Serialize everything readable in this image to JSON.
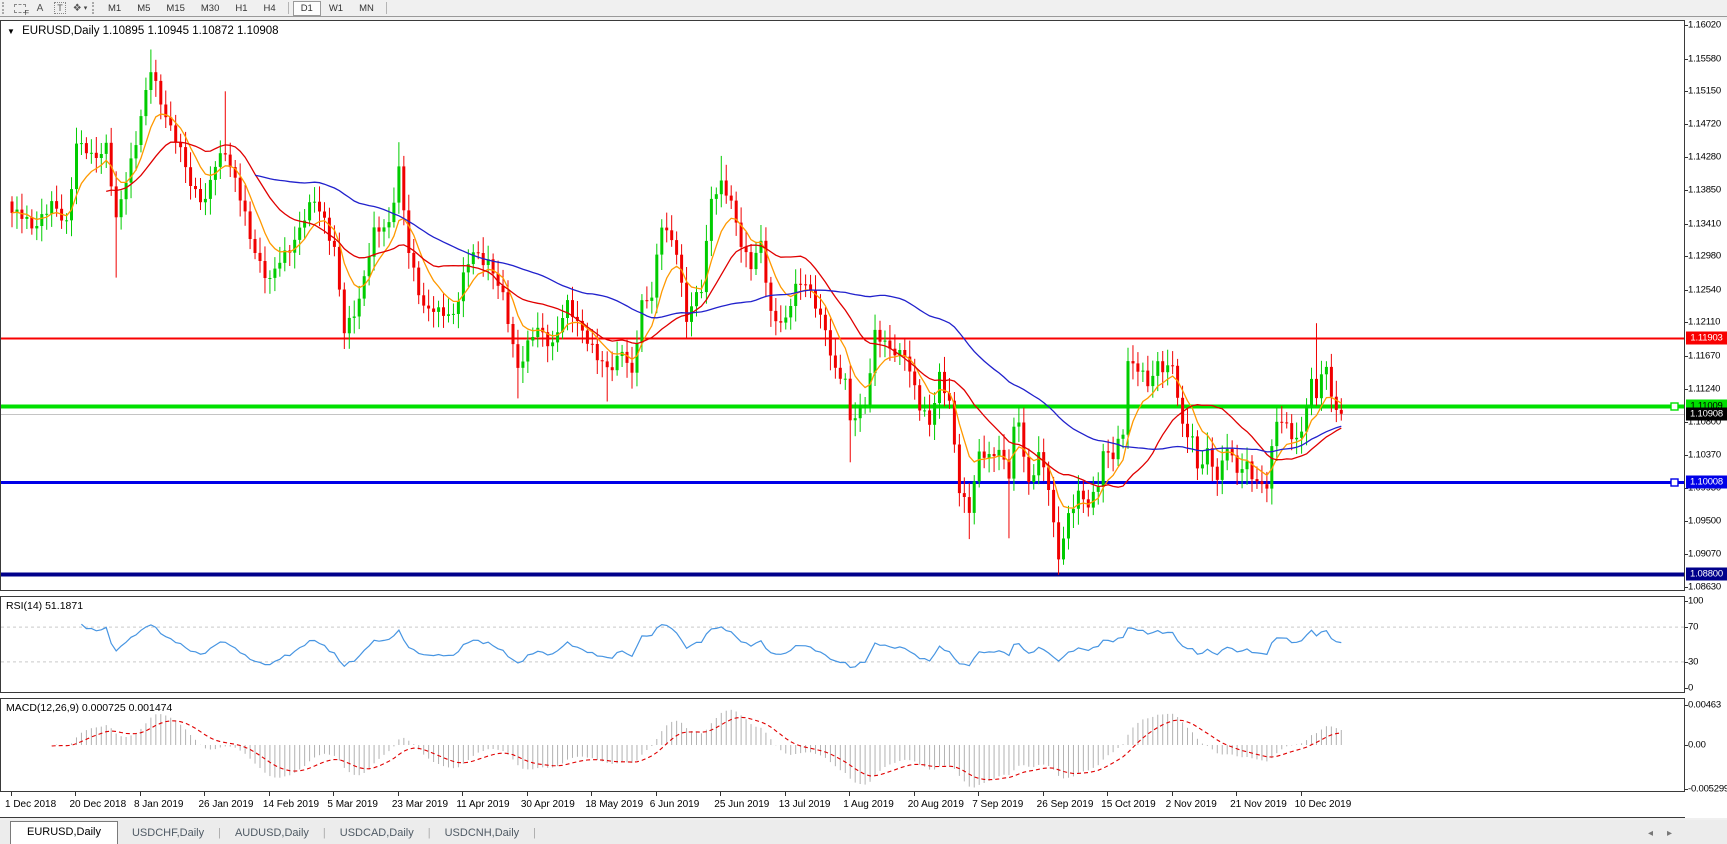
{
  "toolbar": {
    "icons": [
      {
        "id": "dashed-frame-f-icon",
        "glyph": "",
        "sub": "F"
      },
      {
        "id": "text-annotation-icon",
        "glyph": "A"
      },
      {
        "id": "text-label-icon",
        "glyph": "T",
        "boxed": true
      },
      {
        "id": "arrow-objects-icon",
        "glyph": "❖",
        "dropdown": "▾"
      }
    ],
    "timeframes": [
      {
        "label": "M1"
      },
      {
        "label": "M5"
      },
      {
        "label": "M15"
      },
      {
        "label": "M30"
      },
      {
        "label": "H1"
      },
      {
        "label": "H4"
      },
      {
        "label": "D1",
        "active": true
      },
      {
        "label": "W1"
      },
      {
        "label": "MN"
      }
    ]
  },
  "chart_header": {
    "collapse_icon": "▼",
    "symbol": "EURUSD,Daily",
    "ohlc": [
      "1.10895",
      "1.10945",
      "1.10872",
      "1.10908"
    ]
  },
  "tabs": {
    "items": [
      {
        "label": "EURUSD,Daily",
        "active": true
      },
      {
        "label": "USDCHF,Daily"
      },
      {
        "label": "AUDUSD,Daily"
      },
      {
        "label": "USDCAD,Daily"
      },
      {
        "label": "USDCNH,Daily"
      }
    ],
    "scroll_left": "◂",
    "scroll_right": "▸"
  },
  "chart_data": {
    "type": "candlestick",
    "symbol": "EURUSD",
    "timeframe": "Daily",
    "x_axis": {
      "labels": [
        "1 Dec 2018",
        "20 Dec 2018",
        "8 Jan 2019",
        "26 Jan 2019",
        "14 Feb 2019",
        "5 Mar 2019",
        "23 Mar 2019",
        "11 Apr 2019",
        "30 Apr 2019",
        "18 May 2019",
        "6 Jun 2019",
        "25 Jun 2019",
        "13 Jul 2019",
        "1 Aug 2019",
        "20 Aug 2019",
        "7 Sep 2019",
        "26 Sep 2019",
        "15 Oct 2019",
        "2 Nov 2019",
        "21 Nov 2019",
        "10 Dec 2019"
      ],
      "candles_per_label": 13
    },
    "main": {
      "price_labels": [
        "1.16020",
        "1.15580",
        "1.15150",
        "1.14720",
        "1.14280",
        "1.13850",
        "1.13410",
        "1.12980",
        "1.12540",
        "1.12110",
        "1.11670",
        "1.11240",
        "1.10800",
        "1.10370",
        "1.09930",
        "1.09500",
        "1.09070",
        "1.08630"
      ],
      "price_top": 1.16075,
      "price_bottom": 1.0859,
      "lines": [
        {
          "price": 1.11903,
          "label": "1.11903",
          "color": "#f80000",
          "width": 2,
          "label_bg": "#f80000",
          "label_fg": "#ffffff",
          "handle": false
        },
        {
          "price": 1.11009,
          "label": "1.11009",
          "color": "#00e000",
          "width": 4,
          "label_bg": "#00e000",
          "label_fg": "#000000",
          "handle": true
        },
        {
          "price": 1.10908,
          "label": "1.10908",
          "color": "#c4c4c4",
          "width": 1,
          "label_bg": "#000000",
          "label_fg": "#ffffff",
          "handle": false
        },
        {
          "price": 1.10008,
          "label": "1.10008",
          "color": "#0000e8",
          "width": 3,
          "label_bg": "#0000e8",
          "label_fg": "#ffffff",
          "handle": true
        },
        {
          "price": 1.088,
          "label": "1.08800",
          "color": "#00008b",
          "width": 4,
          "label_bg": "#00008b",
          "label_fg": "#ffffff",
          "handle": false
        }
      ],
      "candles": {
        "count": 269,
        "up_color": "#00cc00",
        "down_color": "#f00000",
        "last_close": 1.10908,
        "close_anchors": [
          [
            0,
            1.1355
          ],
          [
            4,
            1.134
          ],
          [
            8,
            1.1362
          ],
          [
            11,
            1.1345
          ],
          [
            13,
            1.1445
          ],
          [
            16,
            1.1428
          ],
          [
            19,
            1.1445
          ],
          [
            21,
            1.134
          ],
          [
            23,
            1.14
          ],
          [
            26,
            1.148
          ],
          [
            28,
            1.154
          ],
          [
            30,
            1.1505
          ],
          [
            33,
            1.145
          ],
          [
            36,
            1.1395
          ],
          [
            39,
            1.137
          ],
          [
            41,
            1.1415
          ],
          [
            43,
            1.144
          ],
          [
            45,
            1.14
          ],
          [
            48,
            1.132
          ],
          [
            52,
            1.1265
          ],
          [
            55,
            1.13
          ],
          [
            58,
            1.1335
          ],
          [
            61,
            1.137
          ],
          [
            63,
            1.135
          ],
          [
            65,
            1.1305
          ],
          [
            67,
            1.1195
          ],
          [
            70,
            1.1245
          ],
          [
            73,
            1.1325
          ],
          [
            76,
            1.1345
          ],
          [
            78,
            1.141
          ],
          [
            80,
            1.13
          ],
          [
            83,
            1.1235
          ],
          [
            86,
            1.122
          ],
          [
            89,
            1.1225
          ],
          [
            91,
            1.127
          ],
          [
            93,
            1.13
          ],
          [
            96,
            1.1295
          ],
          [
            99,
            1.124
          ],
          [
            102,
            1.1155
          ],
          [
            104,
            1.118
          ],
          [
            106,
            1.12
          ],
          [
            109,
            1.1185
          ],
          [
            112,
            1.123
          ],
          [
            115,
            1.1205
          ],
          [
            118,
            1.116
          ],
          [
            120,
            1.115
          ],
          [
            123,
            1.1175
          ],
          [
            125,
            1.1135
          ],
          [
            127,
            1.124
          ],
          [
            129,
            1.125
          ],
          [
            131,
            1.1335
          ],
          [
            134,
            1.131
          ],
          [
            136,
            1.1215
          ],
          [
            139,
            1.1255
          ],
          [
            141,
            1.138
          ],
          [
            143,
            1.139
          ],
          [
            145,
            1.1365
          ],
          [
            147,
            1.132
          ],
          [
            149,
            1.1285
          ],
          [
            151,
            1.131
          ],
          [
            153,
            1.1225
          ],
          [
            156,
            1.121
          ],
          [
            158,
            1.1255
          ],
          [
            160,
            1.127
          ],
          [
            163,
            1.1215
          ],
          [
            166,
            1.115
          ],
          [
            168,
            1.114
          ],
          [
            169,
            1.1075
          ],
          [
            170,
            1.1085
          ],
          [
            172,
            1.1105
          ],
          [
            174,
            1.12
          ],
          [
            177,
            1.117
          ],
          [
            180,
            1.1175
          ],
          [
            183,
            1.1095
          ],
          [
            185,
            1.108
          ],
          [
            187,
            1.1145
          ],
          [
            189,
            1.11
          ],
          [
            191,
            1.099
          ],
          [
            193,
            1.097
          ],
          [
            195,
            1.1035
          ],
          [
            197,
            1.103
          ],
          [
            199,
            1.105
          ],
          [
            201,
            1.101
          ],
          [
            202,
            1.1065
          ],
          [
            203,
            1.1075
          ],
          [
            205,
            1.1
          ],
          [
            207,
            1.104
          ],
          [
            208,
            1.1015
          ],
          [
            209,
            1.099
          ],
          [
            210,
            1.094
          ],
          [
            211,
            1.0905
          ],
          [
            213,
            1.096
          ],
          [
            215,
            1.098
          ],
          [
            217,
            1.097
          ],
          [
            219,
            1.1005
          ],
          [
            220,
            1.104
          ],
          [
            222,
            1.103
          ],
          [
            224,
            1.107
          ],
          [
            225,
            1.1165
          ],
          [
            227,
            1.115
          ],
          [
            229,
            1.1125
          ],
          [
            231,
            1.116
          ],
          [
            233,
            1.1152
          ],
          [
            234,
            1.115
          ],
          [
            236,
            1.107
          ],
          [
            238,
            1.1065
          ],
          [
            239,
            1.102
          ],
          [
            241,
            1.1035
          ],
          [
            243,
            1.1005
          ],
          [
            245,
            1.1055
          ],
          [
            247,
            1.101
          ],
          [
            249,
            1.1021
          ],
          [
            251,
            1.1005
          ],
          [
            253,
            1.0995
          ],
          [
            255,
            1.108
          ],
          [
            257,
            1.108
          ],
          [
            259,
            1.1055
          ],
          [
            260,
            1.1065
          ],
          [
            262,
            1.113
          ],
          [
            263,
            1.112
          ],
          [
            264,
            1.1145
          ],
          [
            265,
            1.1155
          ],
          [
            266,
            1.1115
          ],
          [
            267,
            1.1085
          ],
          [
            268,
            1.1091
          ]
        ],
        "wick_overrides": [
          [
            21,
            "low",
            1.127
          ],
          [
            28,
            "high",
            1.157
          ],
          [
            43,
            "high",
            1.1515
          ],
          [
            67,
            "low",
            1.1176
          ],
          [
            78,
            "high",
            1.1448
          ],
          [
            102,
            "low",
            1.1111
          ],
          [
            120,
            "low",
            1.1107
          ],
          [
            143,
            "high",
            1.143
          ],
          [
            169,
            "low",
            1.1027
          ],
          [
            193,
            "low",
            1.0926
          ],
          [
            201,
            "low",
            1.0927
          ],
          [
            211,
            "low",
            1.0879
          ],
          [
            253,
            "low",
            1.0981
          ],
          [
            263,
            "high",
            1.121
          ]
        ],
        "noise": {
          "amp": 0.0011,
          "f1": 1.7,
          "f2": 0.73,
          "wick_base": 0.0007,
          "wick_amp": 0.0014,
          "wf1": 2.3,
          "wf2": 3.7
        }
      },
      "moving_averages": [
        {
          "period": 8,
          "method": "ema",
          "color": "#ff9900"
        },
        {
          "period": 20,
          "method": "sma",
          "color": "#e00000"
        },
        {
          "period": 50,
          "method": "sma",
          "color": "#2121cc"
        }
      ]
    },
    "rsi": {
      "label": "RSI(14) 51.1871",
      "period": 14,
      "value": 51.1871,
      "color": "#4795e2",
      "levels": [
        70,
        30
      ],
      "level_color": "#c9c9c9",
      "axis_labels": [
        "100",
        "70",
        "30",
        "0"
      ],
      "axis_values": [
        100,
        70,
        30,
        0
      ]
    },
    "macd": {
      "label": "MACD(12,26,9) 0.000725 0.001474",
      "fast": 12,
      "slow": 26,
      "signal": 9,
      "values": [
        0.000725,
        0.001474
      ],
      "bar_color": "#b2b2b2",
      "signal_color": "#e00000",
      "axis": [
        {
          "v": 0.00463,
          "label": "0.00463"
        },
        {
          "v": 0,
          "label": "0.00"
        },
        {
          "v": -0.005299,
          "label": "-0.005299"
        }
      ]
    }
  }
}
